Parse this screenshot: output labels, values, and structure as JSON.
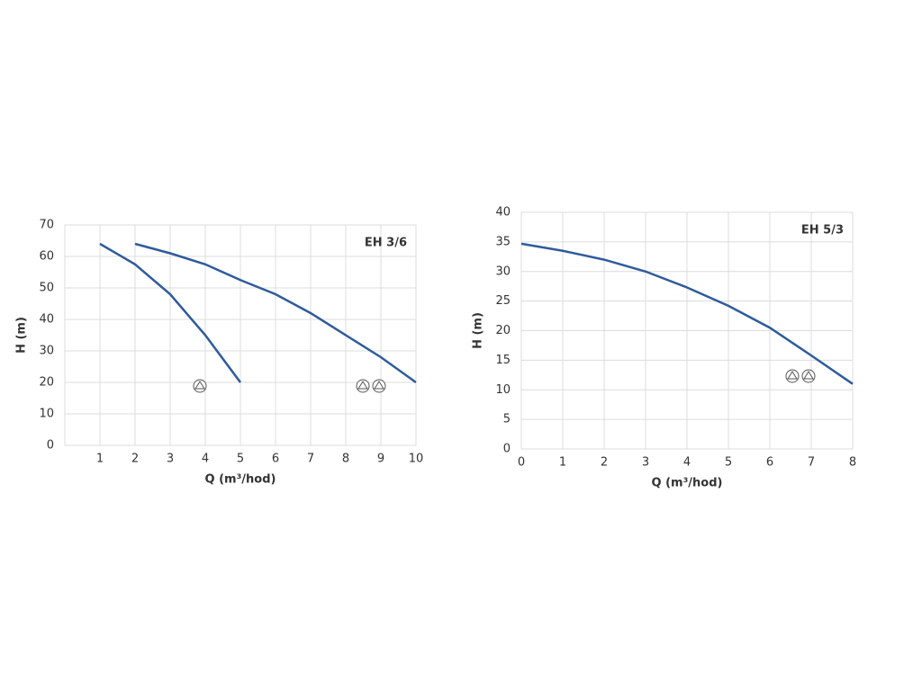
{
  "chart_data": [
    {
      "type": "line",
      "title": "EH 3/6",
      "x_label": "Q (m³/hod)",
      "y_label": "H (m)",
      "xlim": [
        0,
        10
      ],
      "xticks": [
        1,
        2,
        3,
        4,
        5,
        6,
        7,
        8,
        9,
        10
      ],
      "ylim": [
        0,
        70
      ],
      "yticks": [
        0,
        10,
        20,
        30,
        40,
        50,
        60,
        70
      ],
      "grid": true,
      "series": [
        {
          "color": "#2f5b9c",
          "x": [
            1,
            2,
            3,
            4,
            5
          ],
          "values": [
            64,
            57.5,
            48,
            35,
            20
          ]
        },
        {
          "color": "#2f5b9c",
          "x": [
            2,
            3,
            4,
            5,
            6,
            7,
            8,
            9,
            10
          ],
          "values": [
            64,
            61,
            57.5,
            52.5,
            48,
            42,
            35,
            28,
            20
          ]
        }
      ]
    },
    {
      "type": "line",
      "title": "EH 5/3",
      "x_label": "Q (m³/hod)",
      "y_label": "H (m)",
      "xlim": [
        0,
        8
      ],
      "xticks": [
        0,
        1,
        2,
        3,
        4,
        5,
        6,
        7,
        8
      ],
      "ylim": [
        0,
        40
      ],
      "yticks": [
        0,
        5,
        10,
        15,
        20,
        25,
        30,
        35,
        40
      ],
      "grid": true,
      "series": [
        {
          "color": "#2f5b9c",
          "x": [
            0,
            1,
            2,
            3,
            4,
            5,
            6,
            7,
            8
          ],
          "values": [
            34.7,
            33.5,
            32,
            30,
            27.3,
            24.2,
            20.5,
            15.8,
            11
          ]
        }
      ]
    }
  ]
}
